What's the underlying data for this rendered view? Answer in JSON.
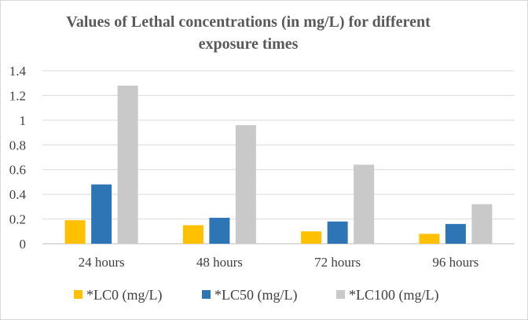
{
  "chart_data": {
    "type": "bar",
    "title": "Values of Lethal concentrations (in mg/L) for different exposure times",
    "title_lines": [
      "Values of Lethal concentrations (in mg/L) for different",
      "exposure times"
    ],
    "xlabel": "",
    "ylabel": "",
    "categories": [
      "24 hours",
      "48 hours",
      "72 hours",
      "96 hours"
    ],
    "ylim": [
      0,
      1.4
    ],
    "yticks": [
      "0",
      "0.2",
      "0.4",
      "0.6",
      "0.8",
      "1",
      "1.2",
      "1.4"
    ],
    "grid": true,
    "legend_position": "bottom",
    "series": [
      {
        "name": "*LC0 (mg/L)",
        "color": "#ffc000",
        "values": [
          0.19,
          0.15,
          0.1,
          0.08
        ]
      },
      {
        "name": "*LC50 (mg/L)",
        "color": "#2e75b6",
        "values": [
          0.48,
          0.21,
          0.18,
          0.16
        ]
      },
      {
        "name": "*LC100 (mg/L)",
        "color": "#c9c9c9",
        "values": [
          1.28,
          0.96,
          0.64,
          0.32
        ]
      }
    ]
  }
}
